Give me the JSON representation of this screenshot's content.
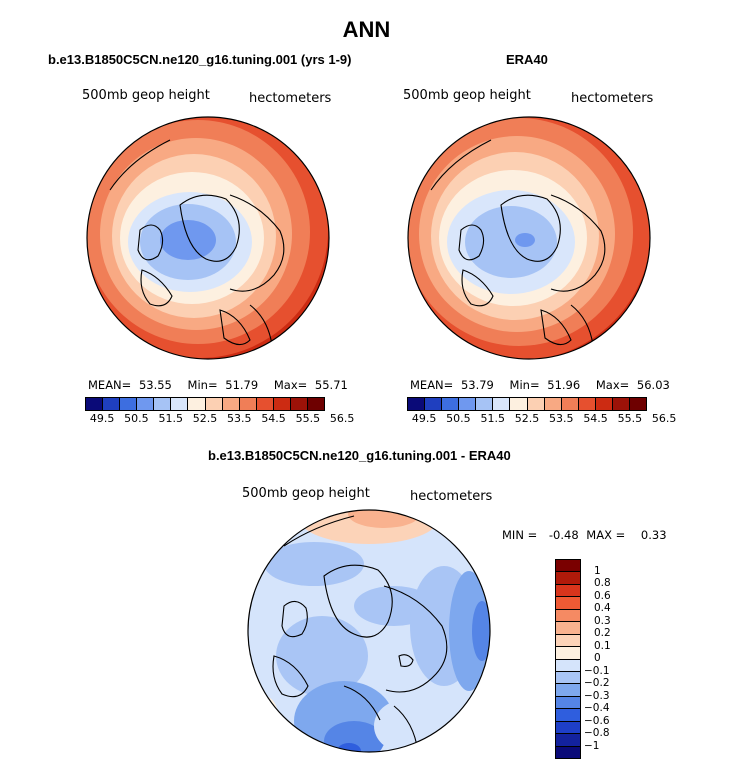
{
  "title": "ANN",
  "panels": [
    {
      "subtitle": "b.e13.B1850C5CN.ne120_g16.tuning.001 (yrs 1-9)",
      "variable": "500mb geop height",
      "units": "hectometers",
      "stats": {
        "mean_label": "MEAN=",
        "mean": "53.55",
        "min_label": "Min=",
        "min": "51.79",
        "max_label": "Max=",
        "max": "55.71"
      }
    },
    {
      "subtitle": "ERA40",
      "variable": "500mb geop height",
      "units": "hectometers",
      "stats": {
        "mean_label": "MEAN=",
        "mean": "53.79",
        "min_label": "Min=",
        "min": "51.96",
        "max_label": "Max=",
        "max": "56.03"
      }
    }
  ],
  "colorbar": {
    "colors": [
      "#0a0a78",
      "#1f3fbf",
      "#3d6ee0",
      "#6f98ef",
      "#a6c3f5",
      "#d9e6fb",
      "#fdf0e0",
      "#fcd0b3",
      "#f8a983",
      "#f07e57",
      "#e6502f",
      "#cc2b12",
      "#9c1208",
      "#6e0000"
    ],
    "tick_labels": [
      "49.5",
      "50.5",
      "51.5",
      "52.5",
      "53.5",
      "54.5",
      "55.5",
      "56.5"
    ]
  },
  "diff": {
    "subtitle": "b.e13.B1850C5CN.ne120_g16.tuning.001 - ERA40",
    "variable": "500mb geop height",
    "units": "hectometers",
    "min_label": "MIN =",
    "min": "-0.48",
    "max_label": "MAX =",
    "max": "0.33",
    "colors": [
      "#7a0000",
      "#b01a0a",
      "#d8351c",
      "#ef5a34",
      "#f58a63",
      "#f9b28f",
      "#fcd3b8",
      "#fdf0e0",
      "#d5e4fb",
      "#a9c5f5",
      "#7ea8ee",
      "#5585e6",
      "#2f5ede",
      "#1e3fc8",
      "#13229e",
      "#0a0a78"
    ],
    "tick_labels": [
      "1",
      "0.8",
      "0.6",
      "0.4",
      "0.3",
      "0.2",
      "0.1",
      "0",
      "−0.1",
      "−0.2",
      "−0.3",
      "−0.4",
      "−0.6",
      "−0.8",
      "−1"
    ]
  }
}
